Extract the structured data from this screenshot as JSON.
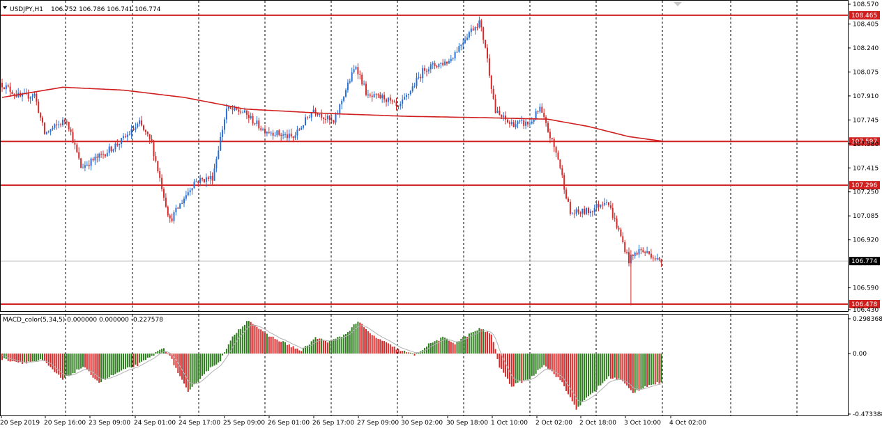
{
  "main_header": {
    "symbol_timeframe": "USDJPY,H1",
    "ohlc": "106.752 106.786 106.741 106.774"
  },
  "macd_header": {
    "label": "MACD_color(5,34,5) 0.000000 0.000000 -0.227578"
  },
  "colors": {
    "bull": "#2a6fd6",
    "bear": "#d62a2a",
    "hline": "#d01f1f",
    "ma": "#d01f1f",
    "macd_pos": "#2e7d1e",
    "macd_neg": "#d62a2a",
    "macd_signal": "#b0b0b0",
    "label_bg": "#d01f1f",
    "current_bg": "#000000"
  },
  "chart_data": [
    {
      "type": "candlestick",
      "title": "USDJPY,H1",
      "ylim": [
        106.43,
        108.57
      ],
      "y_ticks": [
        "108.570",
        "108.405",
        "108.240",
        "108.075",
        "107.910",
        "107.745",
        "107.580",
        "107.415",
        "107.250",
        "107.085",
        "106.920",
        "106.590",
        "106.430"
      ],
      "x_ticks": [
        "20 Sep 2019",
        "20 Sep 16:00",
        "23 Sep 09:00",
        "24 Sep 01:00",
        "24 Sep 17:00",
        "25 Sep 09:00",
        "26 Sep 01:00",
        "26 Sep 17:00",
        "27 Sep 09:00",
        "30 Sep 02:00",
        "30 Sep 18:00",
        "1 Oct 10:00",
        "2 Oct 02:00",
        "2 Oct 18:00",
        "3 Oct 10:00",
        "4 Oct 02:00"
      ],
      "horizontal_levels": [
        "108.465",
        "107.597",
        "107.296",
        "106.478"
      ],
      "current_price": "106.774",
      "anchors": [
        {
          "t": 0,
          "p": 108.0
        },
        {
          "t": 10,
          "p": 107.9
        },
        {
          "t": 17,
          "p": 107.92
        },
        {
          "t": 22,
          "p": 107.65
        },
        {
          "t": 33,
          "p": 107.75
        },
        {
          "t": 40,
          "p": 107.42
        },
        {
          "t": 50,
          "p": 107.5
        },
        {
          "t": 60,
          "p": 107.6
        },
        {
          "t": 69,
          "p": 107.72
        },
        {
          "t": 75,
          "p": 107.58
        },
        {
          "t": 84,
          "p": 107.05
        },
        {
          "t": 96,
          "p": 107.32
        },
        {
          "t": 105,
          "p": 107.35
        },
        {
          "t": 112,
          "p": 107.82
        },
        {
          "t": 120,
          "p": 107.8
        },
        {
          "t": 130,
          "p": 107.68
        },
        {
          "t": 145,
          "p": 107.62
        },
        {
          "t": 155,
          "p": 107.82
        },
        {
          "t": 165,
          "p": 107.72
        },
        {
          "t": 170,
          "p": 107.92
        },
        {
          "t": 176,
          "p": 108.12
        },
        {
          "t": 182,
          "p": 107.9
        },
        {
          "t": 190,
          "p": 107.9
        },
        {
          "t": 197,
          "p": 107.82
        },
        {
          "t": 210,
          "p": 108.1
        },
        {
          "t": 222,
          "p": 108.15
        },
        {
          "t": 232,
          "p": 108.35
        },
        {
          "t": 237,
          "p": 108.42
        },
        {
          "t": 240,
          "p": 108.25
        },
        {
          "t": 245,
          "p": 107.8
        },
        {
          "t": 252,
          "p": 107.72
        },
        {
          "t": 262,
          "p": 107.72
        },
        {
          "t": 267,
          "p": 107.82
        },
        {
          "t": 276,
          "p": 107.48
        },
        {
          "t": 282,
          "p": 107.1
        },
        {
          "t": 292,
          "p": 107.12
        },
        {
          "t": 300,
          "p": 107.2
        },
        {
          "t": 306,
          "p": 106.98
        },
        {
          "t": 311,
          "p": 106.78
        },
        {
          "t": 316,
          "p": 106.85
        },
        {
          "t": 322,
          "p": 106.82
        },
        {
          "t": 326,
          "p": 106.77
        }
      ],
      "ma_anchors": [
        {
          "t": 0,
          "p": 107.9
        },
        {
          "t": 30,
          "p": 107.97
        },
        {
          "t": 60,
          "p": 107.95
        },
        {
          "t": 90,
          "p": 107.9
        },
        {
          "t": 120,
          "p": 107.82
        },
        {
          "t": 160,
          "p": 107.79
        },
        {
          "t": 200,
          "p": 107.77
        },
        {
          "t": 240,
          "p": 107.76
        },
        {
          "t": 270,
          "p": 107.75
        },
        {
          "t": 290,
          "p": 107.7
        },
        {
          "t": 310,
          "p": 107.63
        },
        {
          "t": 326,
          "p": 107.6
        }
      ]
    },
    {
      "type": "histogram",
      "title": "MACD_color(5,34,5)",
      "ylim": [
        -0.473388,
        0.298368
      ],
      "y_ticks": [
        "0.298368",
        "0.00",
        "-0.473388"
      ],
      "anchors": [
        {
          "t": 0,
          "v": -0.04
        },
        {
          "t": 10,
          "v": -0.07
        },
        {
          "t": 20,
          "v": -0.05
        },
        {
          "t": 30,
          "v": -0.2
        },
        {
          "t": 40,
          "v": -0.1
        },
        {
          "t": 48,
          "v": -0.22
        },
        {
          "t": 58,
          "v": -0.14
        },
        {
          "t": 68,
          "v": -0.08
        },
        {
          "t": 74,
          "v": -0.02
        },
        {
          "t": 80,
          "v": 0.05
        },
        {
          "t": 84,
          "v": -0.05
        },
        {
          "t": 92,
          "v": -0.3
        },
        {
          "t": 100,
          "v": -0.15
        },
        {
          "t": 108,
          "v": -0.05
        },
        {
          "t": 115,
          "v": 0.15
        },
        {
          "t": 122,
          "v": 0.26
        },
        {
          "t": 130,
          "v": 0.15
        },
        {
          "t": 140,
          "v": 0.08
        },
        {
          "t": 148,
          "v": 0.02
        },
        {
          "t": 155,
          "v": 0.12
        },
        {
          "t": 162,
          "v": 0.09
        },
        {
          "t": 170,
          "v": 0.15
        },
        {
          "t": 176,
          "v": 0.25
        },
        {
          "t": 182,
          "v": 0.15
        },
        {
          "t": 190,
          "v": 0.08
        },
        {
          "t": 196,
          "v": 0.03
        },
        {
          "t": 204,
          "v": -0.01
        },
        {
          "t": 212,
          "v": 0.08
        },
        {
          "t": 218,
          "v": 0.12
        },
        {
          "t": 224,
          "v": 0.08
        },
        {
          "t": 228,
          "v": 0.12
        },
        {
          "t": 236,
          "v": 0.19
        },
        {
          "t": 242,
          "v": 0.15
        },
        {
          "t": 246,
          "v": -0.1
        },
        {
          "t": 252,
          "v": -0.25
        },
        {
          "t": 262,
          "v": -0.18
        },
        {
          "t": 268,
          "v": -0.08
        },
        {
          "t": 276,
          "v": -0.2
        },
        {
          "t": 284,
          "v": -0.42
        },
        {
          "t": 292,
          "v": -0.3
        },
        {
          "t": 300,
          "v": -0.18
        },
        {
          "t": 306,
          "v": -0.2
        },
        {
          "t": 312,
          "v": -0.3
        },
        {
          "t": 318,
          "v": -0.25
        },
        {
          "t": 326,
          "v": -0.22
        }
      ]
    }
  ]
}
